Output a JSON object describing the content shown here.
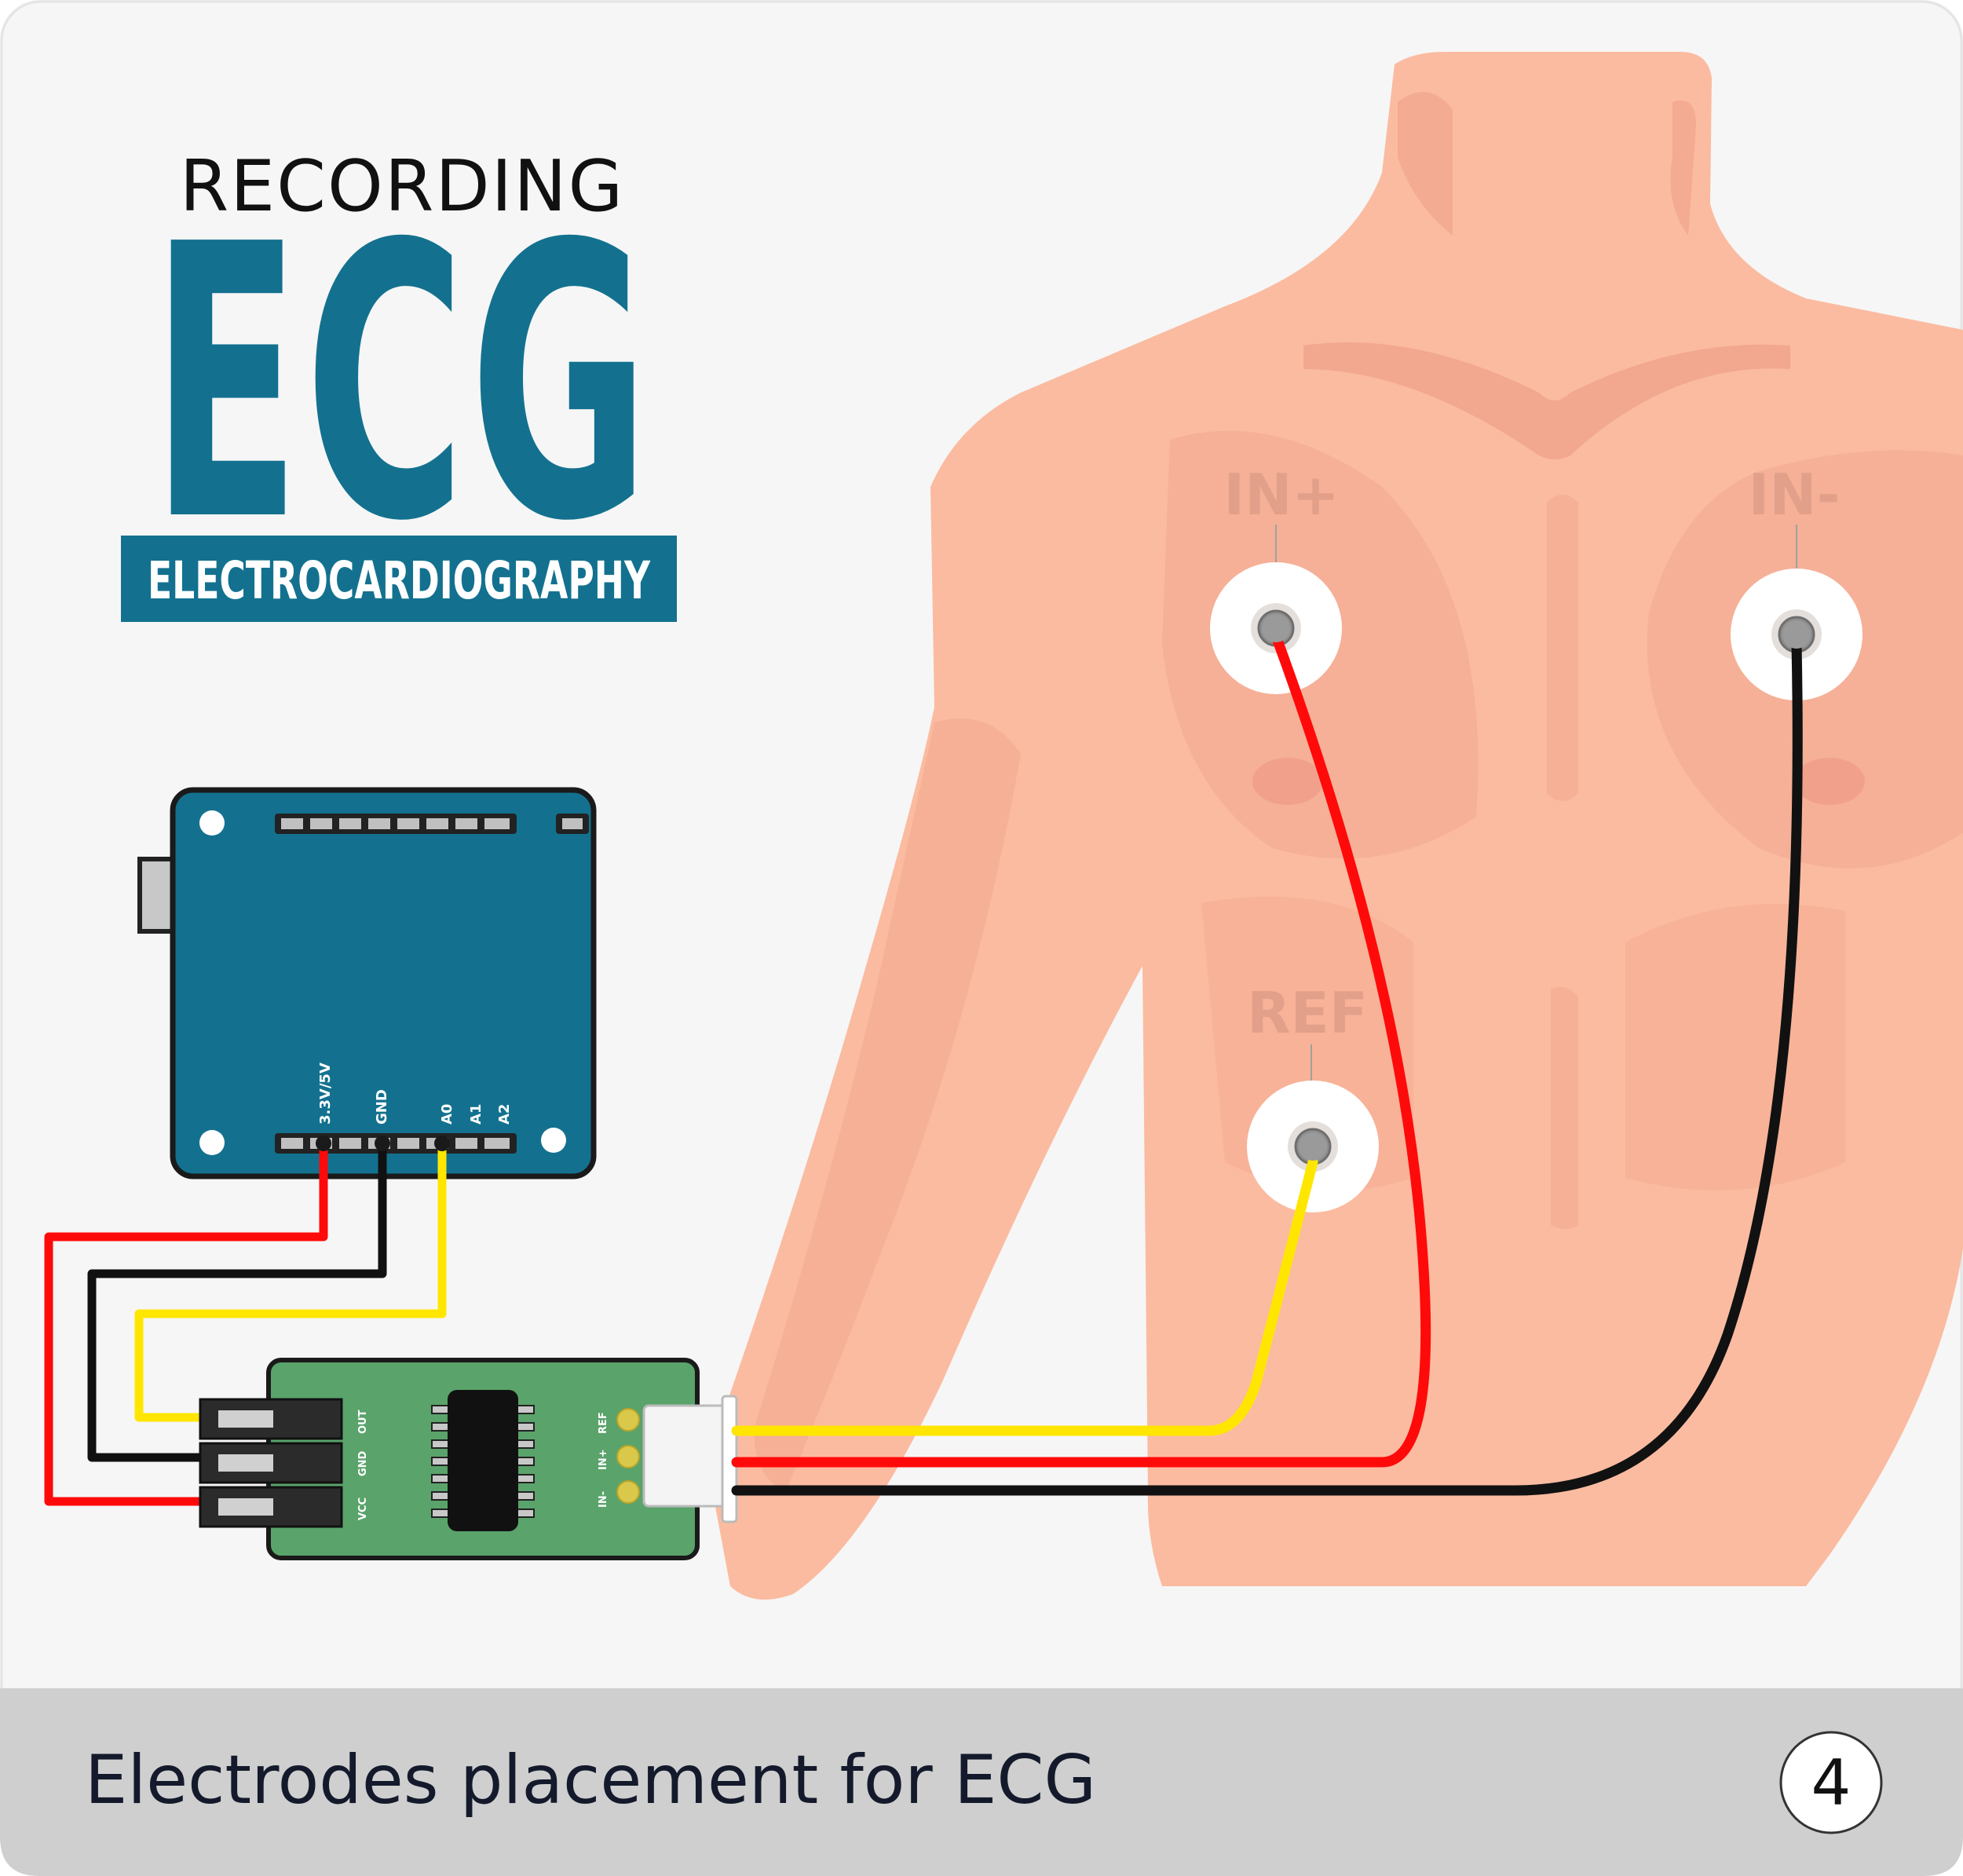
{
  "title": {
    "top": "RECORDING",
    "main": "ECG",
    "subtitle": "ELECTROCARDIOGRAPHY"
  },
  "electrodes": {
    "in_plus": "IN+",
    "in_minus": "IN-",
    "ref": "REF"
  },
  "arduino_pins": {
    "power": "3.3V/5V",
    "gnd": "GND",
    "a0": "A0",
    "a1": "A1",
    "a2": "A2"
  },
  "sensor_pins": {
    "out": "OUT",
    "gnd": "GND",
    "vcc": "VCC",
    "ref": "REF",
    "in_plus": "IN+",
    "in_minus": "IN-"
  },
  "footer": {
    "caption": "Electrodes placement for ECG",
    "step": "4"
  },
  "colors": {
    "brand_blue": "#13718f",
    "skin": "#fbbba0",
    "skin_shade": "#f1a88f",
    "wire_red": "#ff0a0a",
    "wire_black": "#111111",
    "wire_yellow": "#ffe600",
    "board_green": "#5aa36b",
    "footer_bg": "#cfcfcf"
  }
}
